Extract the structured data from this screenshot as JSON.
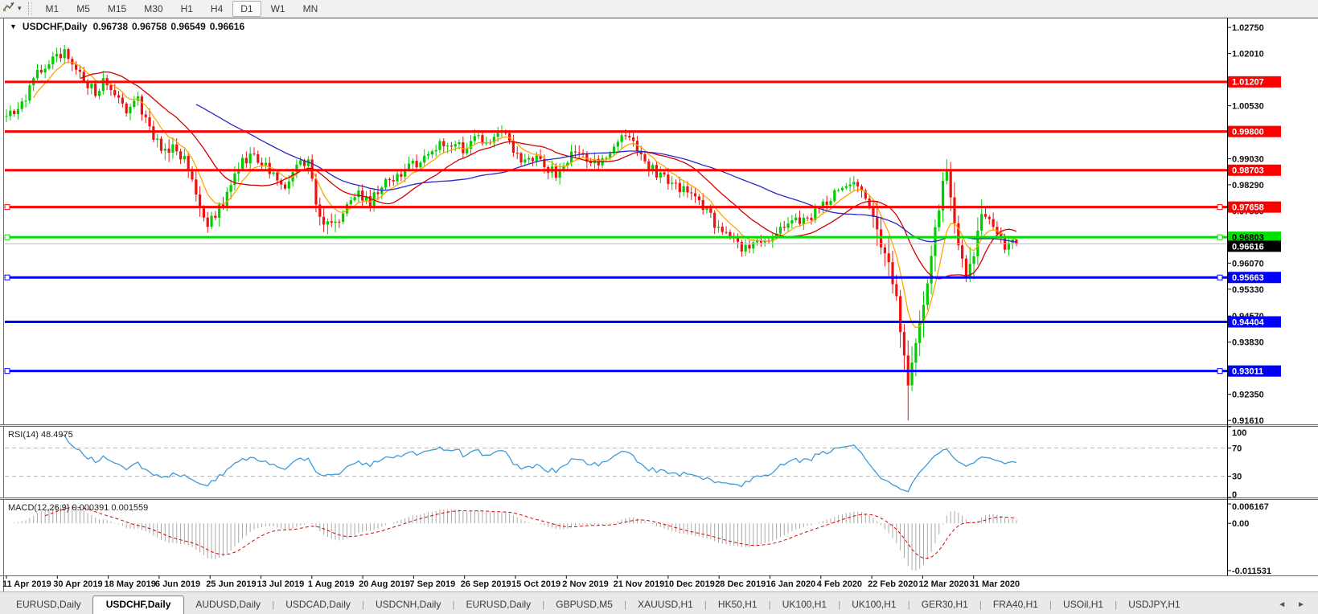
{
  "toolbar": {
    "tool_icon": "chart-line-tool",
    "dropdown_caret": "▾",
    "timeframes": [
      "M1",
      "M5",
      "M15",
      "M30",
      "H1",
      "H4",
      "D1",
      "W1",
      "MN"
    ],
    "active_timeframe": "D1"
  },
  "chart": {
    "title_collapse_icon": "▼",
    "title_symbol": "USDCHF,Daily",
    "ohlc": {
      "open": "0.96738",
      "high": "0.96758",
      "low": "0.96549",
      "close": "0.96616"
    }
  },
  "chart_data": {
    "type": "candlestick",
    "symbol": "USDCHF",
    "timeframe": "Daily",
    "num_candles": 262,
    "price_range": {
      "top": 1.0298,
      "bottom": 0.915
    },
    "y_ticks": [
      {
        "label": "1.02750",
        "value": 1.0275
      },
      {
        "label": "1.02010",
        "value": 1.0201
      },
      {
        "label": "1.00530",
        "value": 1.0053
      },
      {
        "label": "0.99030",
        "value": 0.9903
      },
      {
        "label": "0.98290",
        "value": 0.9829
      },
      {
        "label": "0.97550",
        "value": 0.9755
      },
      {
        "label": "0.96070",
        "value": 0.9607
      },
      {
        "label": "0.95330",
        "value": 0.9533
      },
      {
        "label": "0.94570",
        "value": 0.9457
      },
      {
        "label": "0.93830",
        "value": 0.9383
      },
      {
        "label": "0.92350",
        "value": 0.9235
      },
      {
        "label": "0.91610",
        "value": 0.9161
      }
    ],
    "x_ticks": [
      "11 Apr 2019",
      "30 Apr 2019",
      "18 May 2019",
      "6 Jun 2019",
      "25 Jun 2019",
      "13 Jul 2019",
      "1 Aug 2019",
      "20 Aug 2019",
      "7 Sep 2019",
      "26 Sep 2019",
      "15 Oct 2019",
      "2 Nov 2019",
      "21 Nov 2019",
      "10 Dec 2019",
      "28 Dec 2019",
      "16 Jan 2020",
      "4 Feb 2020",
      "22 Feb 2020",
      "12 Mar 2020",
      "31 Mar 2020"
    ],
    "horizontal_lines": [
      {
        "price": 1.01207,
        "label": "1.01207",
        "color": "#ff0000",
        "text_color": "#ffffff",
        "kind": "resistance"
      },
      {
        "price": 0.998,
        "label": "0.99800",
        "color": "#ff0000",
        "text_color": "#ffffff",
        "kind": "resistance"
      },
      {
        "price": 0.98703,
        "label": "0.98703",
        "color": "#ff0000",
        "text_color": "#ffffff",
        "kind": "resistance"
      },
      {
        "price": 0.97658,
        "label": "0.97658",
        "color": "#ff0000",
        "text_color": "#ffffff",
        "kind": "resistance",
        "handles": true
      },
      {
        "price": 0.96803,
        "label": "0.96803",
        "color": "#00e000",
        "text_color": "#000000",
        "kind": "pivot",
        "handles": true
      },
      {
        "price": 0.95663,
        "label": "0.95663",
        "color": "#0000ff",
        "text_color": "#ffffff",
        "kind": "support",
        "handles": true
      },
      {
        "price": 0.94404,
        "label": "0.94404",
        "color": "#0000ff",
        "text_color": "#ffffff",
        "kind": "support"
      },
      {
        "price": 0.93011,
        "label": "0.93011",
        "color": "#0000ff",
        "text_color": "#ffffff",
        "kind": "support",
        "handles": true
      }
    ],
    "current_price": {
      "value": 0.96616,
      "label": "0.96616",
      "line_color": "#b8b8b8",
      "box_color": "#000000",
      "text_color": "#ffffff"
    },
    "candle_colors": {
      "up": "#00cc00",
      "down": "#f01010"
    },
    "moving_averages": [
      {
        "period": 8,
        "type": "ema",
        "color": "#ffa500"
      },
      {
        "period": 20,
        "type": "sma",
        "color": "#d40000"
      },
      {
        "period": 50,
        "type": "sma",
        "color": "#2929c8"
      }
    ],
    "close_anchors": [
      [
        0,
        1.0021
      ],
      [
        4,
        1.006
      ],
      [
        8,
        1.014
      ],
      [
        12,
        1.019
      ],
      [
        15,
        1.02
      ],
      [
        17,
        1.0185
      ],
      [
        20,
        1.012
      ],
      [
        23,
        1.009
      ],
      [
        25,
        1.013
      ],
      [
        28,
        1.0085
      ],
      [
        31,
        1.004
      ],
      [
        34,
        1.0065
      ],
      [
        37,
        0.999
      ],
      [
        40,
        0.9925
      ],
      [
        43,
        0.994
      ],
      [
        46,
        0.9895
      ],
      [
        49,
        0.98
      ],
      [
        52,
        0.972
      ],
      [
        54,
        0.9745
      ],
      [
        57,
        0.98
      ],
      [
        60,
        0.988
      ],
      [
        63,
        0.9915
      ],
      [
        66,
        0.9885
      ],
      [
        69,
        0.987
      ],
      [
        72,
        0.983
      ],
      [
        75,
        0.989
      ],
      [
        78,
        0.99
      ],
      [
        80,
        0.978
      ],
      [
        82,
        0.9718
      ],
      [
        85,
        0.9722
      ],
      [
        88,
        0.977
      ],
      [
        91,
        0.9808
      ],
      [
        94,
        0.978
      ],
      [
        98,
        0.983
      ],
      [
        102,
        0.9862
      ],
      [
        106,
        0.989
      ],
      [
        110,
        0.993
      ],
      [
        114,
        0.995
      ],
      [
        118,
        0.993
      ],
      [
        121,
        0.998
      ],
      [
        124,
        0.9935
      ],
      [
        127,
        0.9968
      ],
      [
        130,
        0.996
      ],
      [
        133,
        0.988
      ],
      [
        137,
        0.9905
      ],
      [
        140,
        0.987
      ],
      [
        143,
        0.9858
      ],
      [
        147,
        0.9935
      ],
      [
        150,
        0.9905
      ],
      [
        153,
        0.988
      ],
      [
        156,
        0.992
      ],
      [
        159,
        0.9985
      ],
      [
        162,
        0.994
      ],
      [
        165,
        0.9885
      ],
      [
        169,
        0.9858
      ],
      [
        173,
        0.9832
      ],
      [
        177,
        0.98
      ],
      [
        180,
        0.9762
      ],
      [
        183,
        0.9722
      ],
      [
        186,
        0.9695
      ],
      [
        189,
        0.9655
      ],
      [
        192,
        0.9648
      ],
      [
        195,
        0.9672
      ],
      [
        199,
        0.9692
      ],
      [
        203,
        0.9728
      ],
      [
        207,
        0.973
      ],
      [
        211,
        0.9772
      ],
      [
        215,
        0.9808
      ],
      [
        219,
        0.9838
      ],
      [
        222,
        0.98
      ],
      [
        225,
        0.969
      ],
      [
        228,
        0.961
      ],
      [
        230,
        0.95
      ],
      [
        232,
        0.933
      ],
      [
        233,
        0.9261
      ],
      [
        234,
        0.933
      ],
      [
        236,
        0.944
      ],
      [
        238,
        0.956
      ],
      [
        240,
        0.97
      ],
      [
        242,
        0.984
      ],
      [
        243,
        0.9885
      ],
      [
        244,
        0.98
      ],
      [
        246,
        0.965
      ],
      [
        248,
        0.957
      ],
      [
        250,
        0.964
      ],
      [
        252,
        0.974
      ],
      [
        254,
        0.972
      ],
      [
        256,
        0.968
      ],
      [
        258,
        0.9645
      ],
      [
        260,
        0.9674
      ],
      [
        261,
        0.96616
      ]
    ],
    "wick_overrides": {
      "lows": {
        "52": 0.9693,
        "82": 0.9695,
        "233": 0.9161
      },
      "highs": {
        "15": 1.0226,
        "243": 0.9901
      }
    },
    "last_candle": {
      "open": 0.96738,
      "high": 0.96758,
      "low": 0.96549,
      "close": 0.96616
    },
    "rsi": {
      "label": "RSI(14) 48.4975",
      "period": 14,
      "value": "48.4975",
      "levels": [
        70,
        30
      ],
      "axis_labels": [
        "100",
        "70",
        "30",
        "0"
      ],
      "axis_values": [
        100,
        70,
        30,
        0
      ],
      "color": "#3e9bd8"
    },
    "macd": {
      "label": "MACD(12,26,9) 0.000391 0.001559",
      "fast": 12,
      "slow": 26,
      "signal": 9,
      "main_value": "0.000391",
      "signal_value": "0.001559",
      "axis_top": "0.006167",
      "axis_zero": "0.00",
      "axis_bottom": "-0.011531",
      "hist_color": "#a8a8a8",
      "signal_color": "#e00000"
    }
  },
  "tabbar": {
    "tabs": [
      "EURUSD,Daily",
      "USDCHF,Daily",
      "AUDUSD,Daily",
      "USDCAD,Daily",
      "USDCNH,Daily",
      "EURUSD,Daily",
      "GBPUSD,M5",
      "XAUUSD,H1",
      "HK50,H1",
      "UK100,H1",
      "UK100,H1",
      "GER30,H1",
      "FRA40,H1",
      "USOil,H1",
      "USDJPY,H1"
    ],
    "active_index": 1,
    "scroll_left_icon": "◄",
    "scroll_right_icon": "►"
  }
}
